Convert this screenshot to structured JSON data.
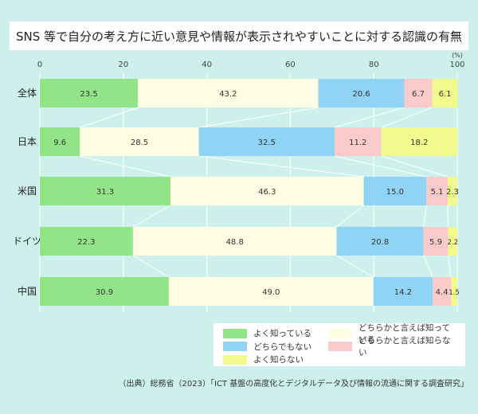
{
  "title": "SNS 等で自分の考え方に近い意見や情報が表示されやすいことに対する認識の有無",
  "source": "（出典）総務省（2023）「ICT 基盤の高度化とデジタルデータ及び情報の流通に関する調査研究」",
  "chart_data": {
    "type": "bar",
    "orientation": "horizontal",
    "stacked": true,
    "unit": "(%)",
    "xlim": [
      0,
      100
    ],
    "x_ticks": [
      "0",
      "20",
      "40",
      "60",
      "80",
      "100"
    ],
    "categories": [
      "全体",
      "日本",
      "米国",
      "ドイツ",
      "中国"
    ],
    "series": [
      {
        "name": "よく知っている",
        "color": "#92e488",
        "values": [
          23.5,
          9.6,
          31.3,
          22.3,
          30.9
        ]
      },
      {
        "name": "どちらかと言えば知っている",
        "color": "#fffde4",
        "values": [
          43.2,
          28.5,
          46.3,
          48.8,
          49.0
        ]
      },
      {
        "name": "どちらでもない",
        "color": "#8fd3f5",
        "values": [
          20.6,
          32.5,
          15.0,
          20.8,
          14.2
        ]
      },
      {
        "name": "どちらかと言えば知らない",
        "color": "#fbcaca",
        "values": [
          6.7,
          11.2,
          5.1,
          5.9,
          4.4
        ]
      },
      {
        "name": "よく知らない",
        "color": "#f1fa8c",
        "values": [
          6.1,
          18.2,
          2.3,
          2.2,
          1.5
        ]
      }
    ],
    "legend_position": "bottom-right",
    "grid": true
  }
}
